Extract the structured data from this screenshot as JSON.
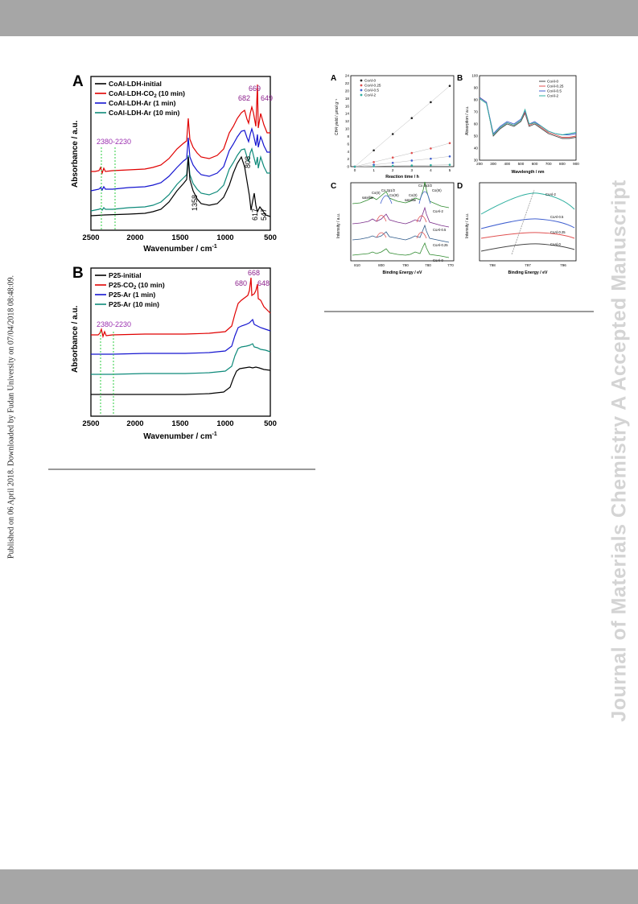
{
  "watermark": "Journal of Materials Chemistry A Accepted Manuscript",
  "sidebar_note": "Published on 06 April 2018. Downloaded by Fudan University on 07/04/2018 08:48:09.",
  "fig_left": {
    "panel_a": {
      "label": "A",
      "legend": [
        "CoAl-LDH-initial",
        "CoAl-LDH-CO",
        "CoAl-LDH-Ar (1 min)",
        "CoAl-LDH-Ar (10 min)"
      ],
      "co2_suffix": "2",
      "co2_time": " (10 min)",
      "peaks": [
        "669",
        "682",
        "649",
        "808",
        "1358",
        "617",
        "547"
      ],
      "range_label": "2380-2230",
      "ylabel": "Absorbance / a.u.",
      "xlabel": "Wavenumber / cm",
      "xlabel_sup": "-1",
      "xticks": [
        "2500",
        "2000",
        "1500",
        "1000",
        "500"
      ]
    },
    "panel_b": {
      "label": "B",
      "legend": [
        "P25-initial",
        "P25-CO",
        "P25-Ar (1 min)",
        "P25-Ar (10 min)"
      ],
      "co2_suffix": "2",
      "co2_time": " (10 min)",
      "peaks": [
        "668",
        "680",
        "648"
      ],
      "range_label": "2380-2230",
      "ylabel": "Absorbance / a.u.",
      "xlabel": "Wavenumber / cm",
      "xlabel_sup": "-1",
      "xticks": [
        "2500",
        "2000",
        "1500",
        "1000",
        "500"
      ]
    }
  },
  "fig_right": {
    "panel_a": {
      "label": "A",
      "ylabel": "CH4 yield / μmol g⁻¹",
      "xlabel": "Reaction time / h",
      "legend": [
        "CoAl-0",
        "CoAl-0.25",
        "CoAl-0.5",
        "CoAl-2"
      ],
      "xticks": [
        "0",
        "1",
        "2",
        "3",
        "4",
        "5"
      ],
      "yticks": [
        "0",
        "2",
        "4",
        "6",
        "8",
        "10",
        "12",
        "14",
        "16",
        "18",
        "20",
        "22",
        "24"
      ]
    },
    "panel_b": {
      "label": "B",
      "ylabel": "Absorption / a.u.",
      "xlabel": "Wavelength / nm",
      "legend": [
        "CoAl-0",
        "CoAl-0.25",
        "CoAl-0.5",
        "CoAl-2"
      ],
      "xticks": [
        "200",
        "300",
        "400",
        "500",
        "600",
        "700",
        "800",
        "900"
      ],
      "yticks": [
        "30",
        "40",
        "50",
        "60",
        "70",
        "80",
        "90",
        "100"
      ]
    },
    "panel_c": {
      "label": "C",
      "ylabel": "Intensity / a.u.",
      "xlabel": "Binding Energy / eV",
      "xticks": [
        "810",
        "800",
        "790",
        "780",
        "770"
      ],
      "annotations": [
        "Co 2p3/2",
        "Co 2p1/2",
        "Co(II)",
        "Co(III)",
        "satellite",
        "Co(II)",
        "Co(III)",
        "satellite"
      ],
      "curve_labels": [
        "CoAl-2",
        "CoAl-0.5",
        "CoAl-0.25",
        "CoAl-0"
      ]
    },
    "panel_d": {
      "label": "D",
      "ylabel": "Intensity / a.u.",
      "xlabel": "Binding Energy / eV",
      "xticks": [
        "798",
        "797",
        "796"
      ],
      "curve_labels": [
        "CoAl-2",
        "CoAl-0.5",
        "CoAl-0.25",
        "CoAl-0"
      ]
    }
  },
  "chart_data": [
    {
      "type": "line",
      "xlabel": "Wavenumber / cm-1",
      "ylabel": "Absorbance / a.u.",
      "xlim": [
        2500,
        500
      ],
      "series": [
        {
          "name": "CoAl-LDH-initial",
          "color": "#000000"
        },
        {
          "name": "CoAl-LDH-CO2 (10 min)",
          "color": "#e00000"
        },
        {
          "name": "CoAl-LDH-Ar (1 min)",
          "color": "#1515d0"
        },
        {
          "name": "CoAl-LDH-Ar (10 min)",
          "color": "#0e8a7a"
        }
      ]
    },
    {
      "type": "line",
      "xlabel": "Wavenumber / cm-1",
      "ylabel": "Absorbance / a.u.",
      "xlim": [
        2500,
        500
      ],
      "series": [
        {
          "name": "P25-initial",
          "color": "#000000"
        },
        {
          "name": "P25-CO2 (10 min)",
          "color": "#e00000"
        },
        {
          "name": "P25-Ar (1 min)",
          "color": "#1515d0"
        },
        {
          "name": "P25-Ar (10 min)",
          "color": "#0e8a7a"
        }
      ]
    },
    {
      "type": "scatter",
      "xlabel": "Reaction time / h",
      "ylabel": "CH4 yield / μmol g-1",
      "xlim": [
        0,
        5
      ],
      "ylim": [
        0,
        24
      ],
      "x": [
        0,
        1,
        2,
        3,
        4,
        5
      ],
      "series": [
        {
          "name": "CoAl-0",
          "color": "#222222",
          "values": [
            0,
            4.3,
            8.6,
            12.8,
            17.0,
            21.3
          ]
        },
        {
          "name": "CoAl-0.25",
          "color": "#e05050",
          "values": [
            0,
            1.2,
            2.4,
            3.6,
            4.8,
            6.2
          ]
        },
        {
          "name": "CoAl-0.5",
          "color": "#4060d0",
          "values": [
            0,
            0.5,
            1.0,
            1.6,
            2.1,
            2.7
          ]
        },
        {
          "name": "CoAl-2",
          "color": "#30b0a0",
          "values": [
            0,
            0.1,
            0.2,
            0.3,
            0.4,
            0.5
          ]
        }
      ]
    },
    {
      "type": "line",
      "xlabel": "Wavelength / nm",
      "ylabel": "Absorption / a.u.",
      "xlim": [
        200,
        900
      ],
      "ylim": [
        30,
        100
      ],
      "x": [
        200,
        250,
        300,
        350,
        400,
        450,
        500,
        530,
        560,
        600,
        650,
        700,
        750,
        800,
        850,
        900
      ],
      "series": [
        {
          "name": "CoAl-0",
          "color": "#444444",
          "values": [
            82,
            78,
            50,
            56,
            60,
            58,
            62,
            69,
            58,
            60,
            56,
            52,
            50,
            48,
            48,
            49
          ]
        },
        {
          "name": "CoAl-0.25",
          "color": "#e05050",
          "values": [
            82,
            78,
            51,
            57,
            61,
            59,
            63,
            70,
            59,
            61,
            57,
            53,
            51,
            49,
            49,
            50
          ]
        },
        {
          "name": "CoAl-0.5",
          "color": "#4060d0",
          "values": [
            82,
            78,
            52,
            58,
            62,
            60,
            64,
            71,
            60,
            62,
            58,
            54,
            52,
            51,
            51,
            52
          ]
        },
        {
          "name": "CoAl-2",
          "color": "#30b0a0",
          "values": [
            81,
            77,
            51,
            57,
            61,
            59,
            63,
            72,
            60,
            61,
            58,
            54,
            52,
            51,
            52,
            53
          ]
        }
      ]
    }
  ]
}
